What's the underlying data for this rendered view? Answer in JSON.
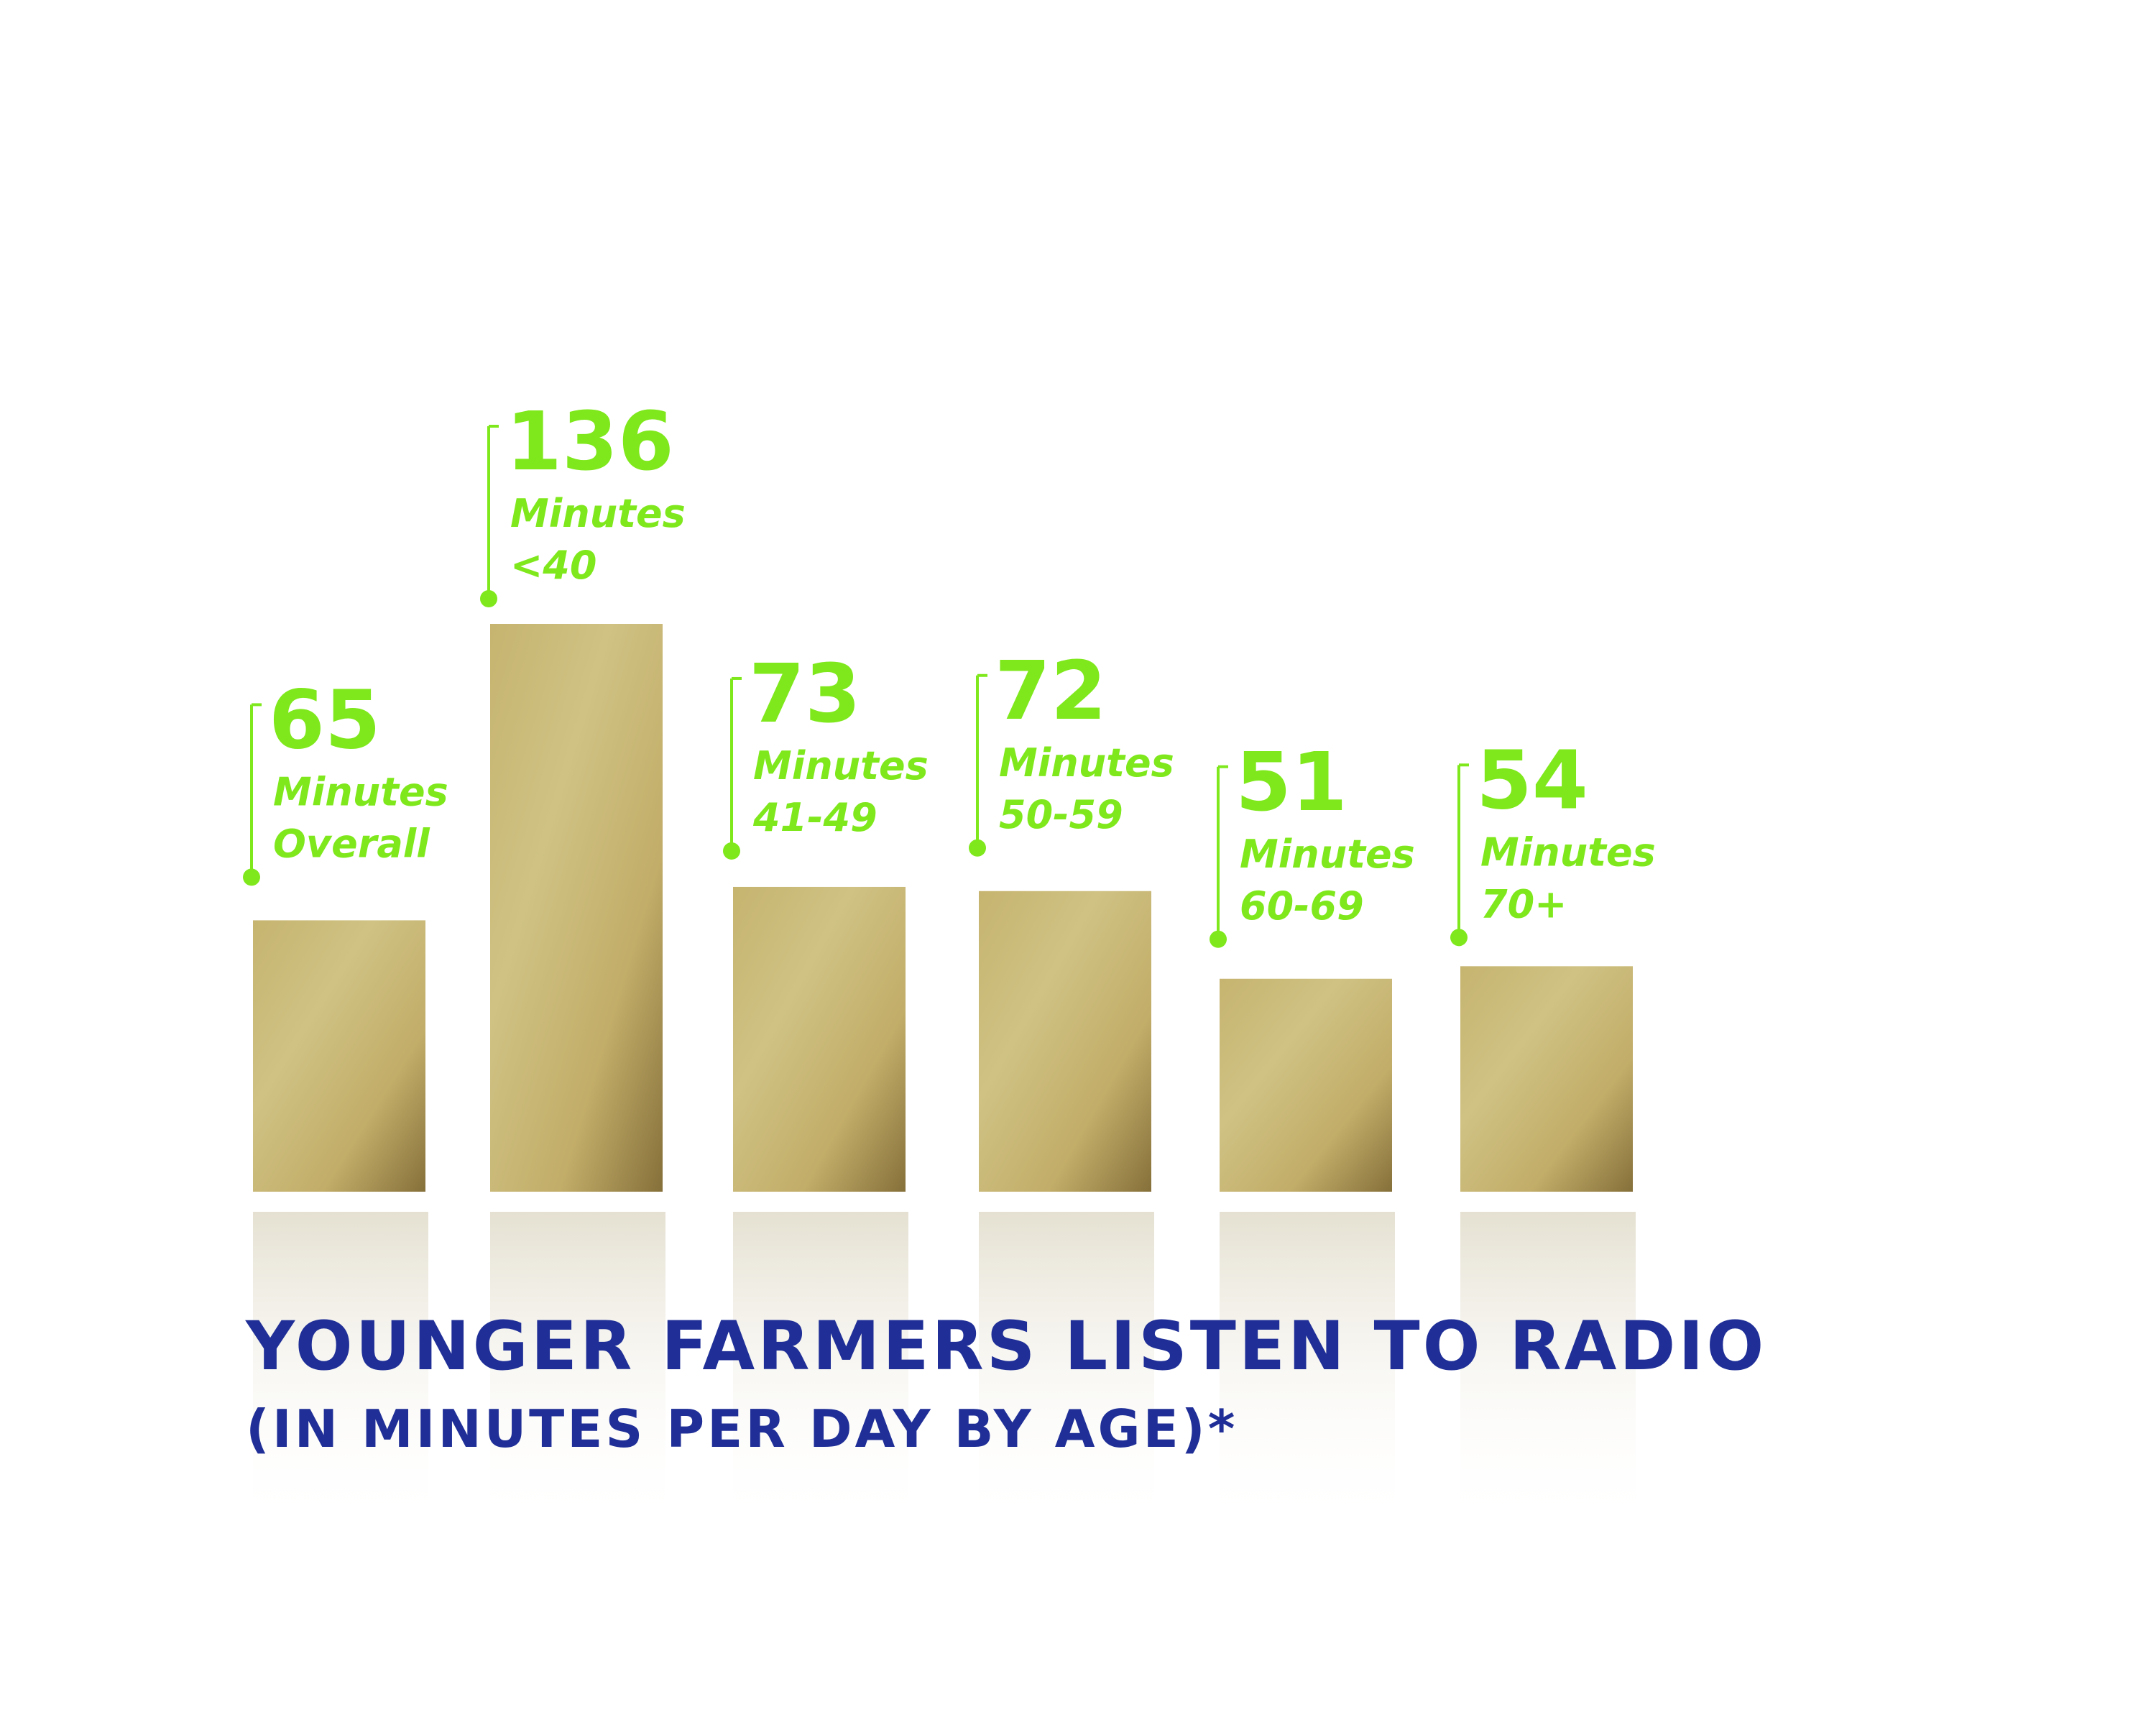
{
  "chart_data": {
    "type": "bar",
    "title": "YOUNGER FARMERS LISTEN TO RADIO",
    "subtitle": "(IN MINUTES PER DAY BY AGE)*",
    "unit_label": "Minutes",
    "categories": [
      "Overall",
      "<40",
      "41-49",
      "50-59",
      "60-69",
      "70+"
    ],
    "values": [
      65,
      136,
      73,
      72,
      51,
      54
    ],
    "ylim": [
      0,
      136
    ],
    "grid": false,
    "legend": "none",
    "colors": {
      "bar_light": "#cfc283",
      "bar_mid": "#c2ad69",
      "bar_dark": "#8a7439",
      "label": "#7fe81c",
      "title": "#1f2f97"
    }
  }
}
